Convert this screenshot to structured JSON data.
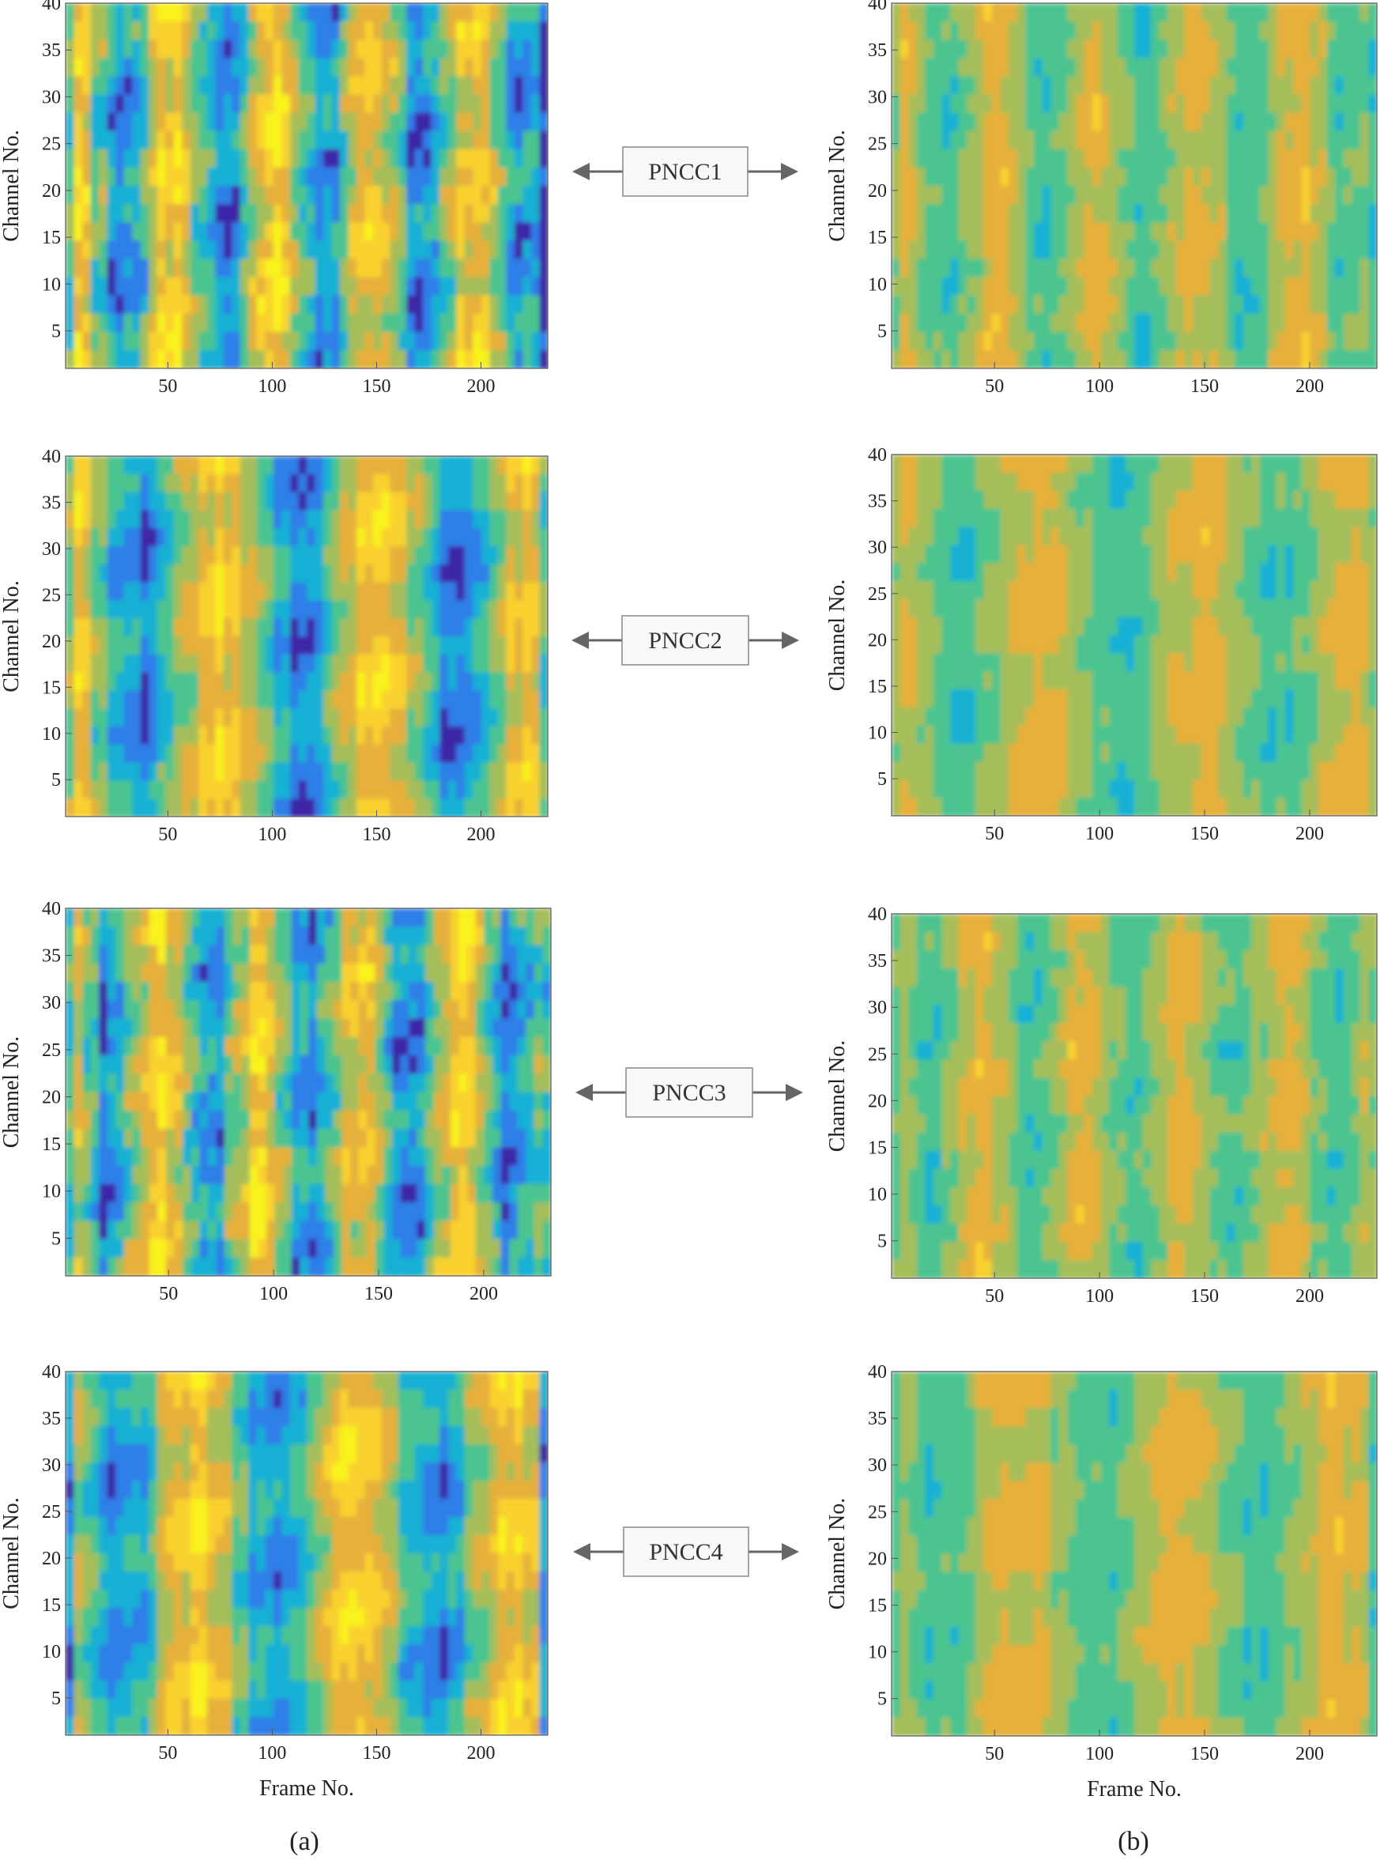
{
  "colors": {
    "colormap": [
      "#3e26a8",
      "#2e7fe8",
      "#15b1d4",
      "#4cc490",
      "#a5be5a",
      "#e6b03a",
      "#f9d12f",
      "#f9f21b"
    ],
    "frame": "#555555",
    "arrow": "#666666",
    "box_border": "#888888",
    "box_fill": "#f8f8f8"
  },
  "panel_labels": [
    "(a)",
    "(b)"
  ],
  "chart_data": [
    {
      "id": "a1",
      "type": "heatmap",
      "column": "(a)",
      "feature": "PNCC1",
      "ylabel": "Channel No.",
      "xlabel": "",
      "x_ticks": [
        "50",
        "100",
        "150",
        "200"
      ],
      "y_ticks": [
        "5",
        "10",
        "15",
        "20",
        "25",
        "30",
        "35",
        "40"
      ],
      "xlim": [
        1,
        232
      ],
      "ylim": [
        1,
        40
      ],
      "colormap": "parula"
    },
    {
      "id": "b1",
      "type": "heatmap",
      "column": "(b)",
      "feature": "PNCC1",
      "ylabel": "Channel No.",
      "xlabel": "",
      "x_ticks": [
        "50",
        "100",
        "150",
        "200"
      ],
      "y_ticks": [
        "5",
        "10",
        "15",
        "20",
        "25",
        "30",
        "35",
        "40"
      ],
      "xlim": [
        1,
        232
      ],
      "ylim": [
        1,
        40
      ],
      "colormap": "parula"
    },
    {
      "id": "a2",
      "type": "heatmap",
      "column": "(a)",
      "feature": "PNCC2",
      "ylabel": "Channel No.",
      "xlabel": "",
      "x_ticks": [
        "50",
        "100",
        "150",
        "200"
      ],
      "y_ticks": [
        "5",
        "10",
        "15",
        "20",
        "25",
        "30",
        "35",
        "40"
      ],
      "xlim": [
        1,
        232
      ],
      "ylim": [
        1,
        40
      ],
      "colormap": "parula"
    },
    {
      "id": "b2",
      "type": "heatmap",
      "column": "(b)",
      "feature": "PNCC2",
      "ylabel": "Channel No.",
      "xlabel": "",
      "x_ticks": [
        "50",
        "100",
        "150",
        "200"
      ],
      "y_ticks": [
        "5",
        "10",
        "15",
        "20",
        "25",
        "30",
        "35",
        "40"
      ],
      "xlim": [
        1,
        232
      ],
      "ylim": [
        1,
        40
      ],
      "colormap": "parula"
    },
    {
      "id": "a3",
      "type": "heatmap",
      "column": "(a)",
      "feature": "PNCC3",
      "ylabel": "Channel No.",
      "xlabel": "",
      "x_ticks": [
        "50",
        "100",
        "150",
        "200"
      ],
      "y_ticks": [
        "5",
        "10",
        "15",
        "20",
        "25",
        "30",
        "35",
        "40"
      ],
      "xlim": [
        1,
        232
      ],
      "ylim": [
        1,
        40
      ],
      "colormap": "parula"
    },
    {
      "id": "b3",
      "type": "heatmap",
      "column": "(b)",
      "feature": "PNCC3",
      "ylabel": "Channel No.",
      "xlabel": "",
      "x_ticks": [
        "50",
        "100",
        "150",
        "200"
      ],
      "y_ticks": [
        "5",
        "10",
        "15",
        "20",
        "25",
        "30",
        "35",
        "40"
      ],
      "xlim": [
        1,
        232
      ],
      "ylim": [
        1,
        40
      ],
      "colormap": "parula"
    },
    {
      "id": "a4",
      "type": "heatmap",
      "column": "(a)",
      "feature": "PNCC4",
      "ylabel": "Channel No.",
      "xlabel": "Frame No.",
      "x_ticks": [
        "50",
        "100",
        "150",
        "200"
      ],
      "y_ticks": [
        "5",
        "10",
        "15",
        "20",
        "25",
        "30",
        "35",
        "40"
      ],
      "xlim": [
        1,
        232
      ],
      "ylim": [
        1,
        40
      ],
      "colormap": "parula"
    },
    {
      "id": "b4",
      "type": "heatmap",
      "column": "(b)",
      "feature": "PNCC4",
      "ylabel": "Channel No.",
      "xlabel": "Frame No.",
      "x_ticks": [
        "50",
        "100",
        "150",
        "200"
      ],
      "y_ticks": [
        "5",
        "10",
        "15",
        "20",
        "25",
        "30",
        "35",
        "40"
      ],
      "xlim": [
        1,
        232
      ],
      "ylim": [
        1,
        40
      ],
      "colormap": "parula"
    }
  ],
  "connectors": [
    {
      "label": "PNCC1"
    },
    {
      "label": "PNCC2"
    },
    {
      "label": "PNCC3"
    },
    {
      "label": "PNCC4"
    }
  ]
}
